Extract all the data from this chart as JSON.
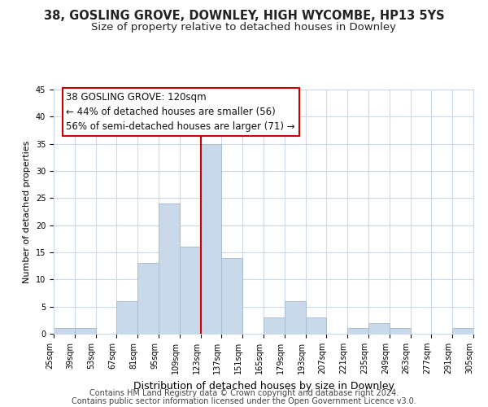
{
  "title": "38, GOSLING GROVE, DOWNLEY, HIGH WYCOMBE, HP13 5YS",
  "subtitle": "Size of property relative to detached houses in Downley",
  "xlabel": "Distribution of detached houses by size in Downley",
  "ylabel": "Number of detached properties",
  "bin_edges": [
    25,
    39,
    53,
    67,
    81,
    95,
    109,
    123,
    137,
    151,
    165,
    179,
    193,
    207,
    221,
    235,
    249,
    263,
    277,
    291,
    305
  ],
  "counts": [
    1,
    1,
    0,
    6,
    13,
    24,
    16,
    35,
    14,
    0,
    3,
    6,
    3,
    0,
    1,
    2,
    1,
    0,
    0,
    1
  ],
  "bar_color": "#c9d9ea",
  "bar_edgecolor": "#aabdd4",
  "vline_x": 123,
  "vline_color": "#cc0000",
  "ann_line1": "38 GOSLING GROVE: 120sqm",
  "ann_line2": "← 44% of detached houses are smaller (56)",
  "ann_line3": "56% of semi-detached houses are larger (71) →",
  "tick_labels": [
    "25sqm",
    "39sqm",
    "53sqm",
    "67sqm",
    "81sqm",
    "95sqm",
    "109sqm",
    "123sqm",
    "137sqm",
    "151sqm",
    "165sqm",
    "179sqm",
    "193sqm",
    "207sqm",
    "221sqm",
    "235sqm",
    "249sqm",
    "263sqm",
    "277sqm",
    "291sqm",
    "305sqm"
  ],
  "ylim": [
    0,
    45
  ],
  "yticks": [
    0,
    5,
    10,
    15,
    20,
    25,
    30,
    35,
    40,
    45
  ],
  "footer_line1": "Contains HM Land Registry data © Crown copyright and database right 2024.",
  "footer_line2": "Contains public sector information licensed under the Open Government Licence v3.0.",
  "bg_color": "#ffffff",
  "grid_color": "#ccd9e8",
  "title_fontsize": 10.5,
  "subtitle_fontsize": 9.5,
  "xlabel_fontsize": 9,
  "ylabel_fontsize": 8,
  "tick_fontsize": 7,
  "ann_fontsize": 8.5,
  "footer_fontsize": 7
}
